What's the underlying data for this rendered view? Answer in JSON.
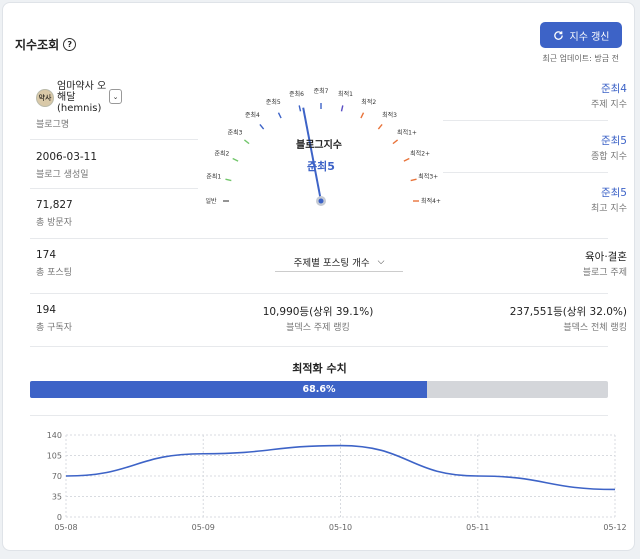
{
  "header": {
    "title": "지수조회",
    "help_icon": "?",
    "refresh_label": "지수 갱신",
    "updated_label": "최근 업데이트: 방금 전"
  },
  "blog": {
    "name": "엄마약사 오해달 (hemnis)",
    "avatar_text": "약사",
    "name_label": "블로그명",
    "created": "2006-03-11",
    "created_label": "블로그 생성일",
    "visitors": "71,827",
    "visitors_label": "총 방문자",
    "posts": "174",
    "posts_label": "총 포스팅",
    "subscribers": "194",
    "subscribers_label": "총 구독자"
  },
  "gauge": {
    "title": "블로그지수",
    "value": "준최5",
    "level": 0.44,
    "ticks": [
      "일반",
      "준최1",
      "준최2",
      "준최3",
      "준최4",
      "준최5",
      "준최6",
      "준최7",
      "최적1",
      "최적2",
      "최적3",
      "최적1+",
      "최적2+",
      "최적3+",
      "최적4+"
    ],
    "tick_colors": [
      "#666666",
      "#72c66b",
      "#72c66b",
      "#72c66b",
      "#3d63c7",
      "#3d63c7",
      "#3d63c7",
      "#3d63c7",
      "#5a4fc4",
      "#e8733a",
      "#e8733a",
      "#e8733a",
      "#e8733a",
      "#e8733a",
      "#e8733a"
    ]
  },
  "indices": {
    "topic_value": "준최4",
    "topic_label": "주제 지수",
    "overall_value": "준최5",
    "overall_label": "종합 지수",
    "max_value": "준최5",
    "max_label": "최고 지수"
  },
  "topic_select": {
    "label": "주제별 포스팅 개수"
  },
  "category": {
    "value": "육아·결혼",
    "label": "블로그 주제"
  },
  "rank": {
    "topic_value": "10,990등(상위 39.1%)",
    "topic_label": "블덱스 주제 랭킹",
    "overall_value": "237,551등(상위 32.0%)",
    "overall_label": "블덱스 전체 랭킹"
  },
  "optimization": {
    "title": "최적화 수치",
    "percent": 68.6,
    "label": "68.6%"
  },
  "chart_data": {
    "type": "line",
    "x": [
      "05-08",
      "05-09",
      "05-10",
      "05-11",
      "05-12"
    ],
    "y_ticks": [
      0,
      35,
      70,
      105,
      140
    ],
    "ylim": [
      0,
      140
    ],
    "series": [
      {
        "values": [
          70,
          108,
          122,
          70,
          47
        ]
      }
    ],
    "color": "#3d63c7",
    "grid": true
  }
}
